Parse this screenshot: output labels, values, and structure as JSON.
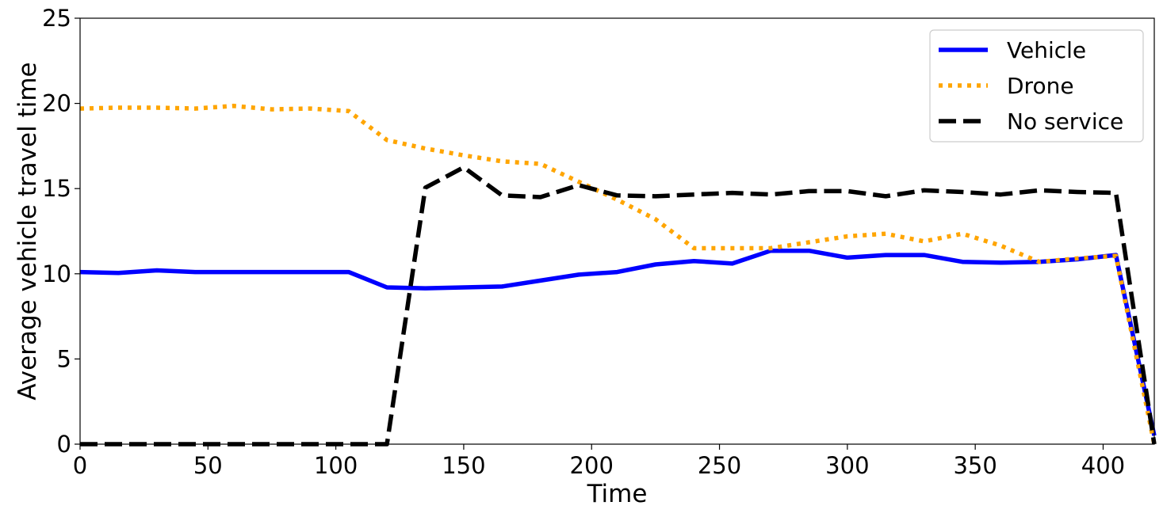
{
  "chart_data": {
    "type": "line",
    "xlabel": "Time",
    "ylabel": "Average vehicle travel time",
    "xlim": [
      0,
      420
    ],
    "ylim": [
      0,
      25
    ],
    "xticks": [
      0,
      50,
      100,
      150,
      200,
      250,
      300,
      350,
      400
    ],
    "yticks": [
      0,
      5,
      10,
      15,
      20,
      25
    ],
    "grid": false,
    "legend_position": "top-right",
    "series": [
      {
        "name": "Vehicle",
        "color": "#0000ff",
        "style": "solid",
        "x": [
          0,
          15,
          30,
          45,
          60,
          75,
          90,
          105,
          120,
          135,
          150,
          165,
          180,
          195,
          210,
          225,
          240,
          255,
          270,
          285,
          300,
          315,
          330,
          345,
          360,
          375,
          390,
          405,
          420
        ],
        "y": [
          10.1,
          10.05,
          10.2,
          10.1,
          10.1,
          10.1,
          10.1,
          10.1,
          9.2,
          9.15,
          9.2,
          9.25,
          9.6,
          9.95,
          10.1,
          10.55,
          10.75,
          10.6,
          11.35,
          11.35,
          10.95,
          11.1,
          11.1,
          10.7,
          10.65,
          10.7,
          10.85,
          11.1,
          0.5
        ]
      },
      {
        "name": "Drone",
        "color": "#ffa500",
        "style": "dotted",
        "x": [
          0,
          15,
          30,
          45,
          60,
          75,
          90,
          105,
          120,
          135,
          150,
          165,
          180,
          195,
          210,
          225,
          240,
          255,
          270,
          285,
          300,
          315,
          330,
          345,
          360,
          375,
          390,
          405,
          420
        ],
        "y": [
          19.7,
          19.75,
          19.75,
          19.7,
          19.85,
          19.65,
          19.7,
          19.55,
          17.85,
          17.35,
          16.95,
          16.6,
          16.45,
          15.4,
          14.35,
          13.2,
          11.5,
          11.5,
          11.5,
          11.85,
          12.2,
          12.35,
          11.9,
          12.35,
          11.65,
          10.7,
          10.9,
          11.05,
          0.0
        ]
      },
      {
        "name": "No service",
        "color": "#000000",
        "style": "dashed",
        "x": [
          0,
          15,
          30,
          45,
          60,
          75,
          90,
          105,
          120,
          135,
          150,
          165,
          180,
          195,
          210,
          225,
          240,
          255,
          270,
          285,
          300,
          315,
          330,
          345,
          360,
          375,
          390,
          405,
          420
        ],
        "y": [
          0,
          0,
          0,
          0,
          0,
          0,
          0,
          0,
          0,
          15.05,
          16.25,
          14.6,
          14.5,
          15.2,
          14.6,
          14.55,
          14.65,
          14.75,
          14.65,
          14.85,
          14.85,
          14.55,
          14.9,
          14.8,
          14.65,
          14.9,
          14.8,
          14.75,
          0.0
        ]
      }
    ]
  }
}
